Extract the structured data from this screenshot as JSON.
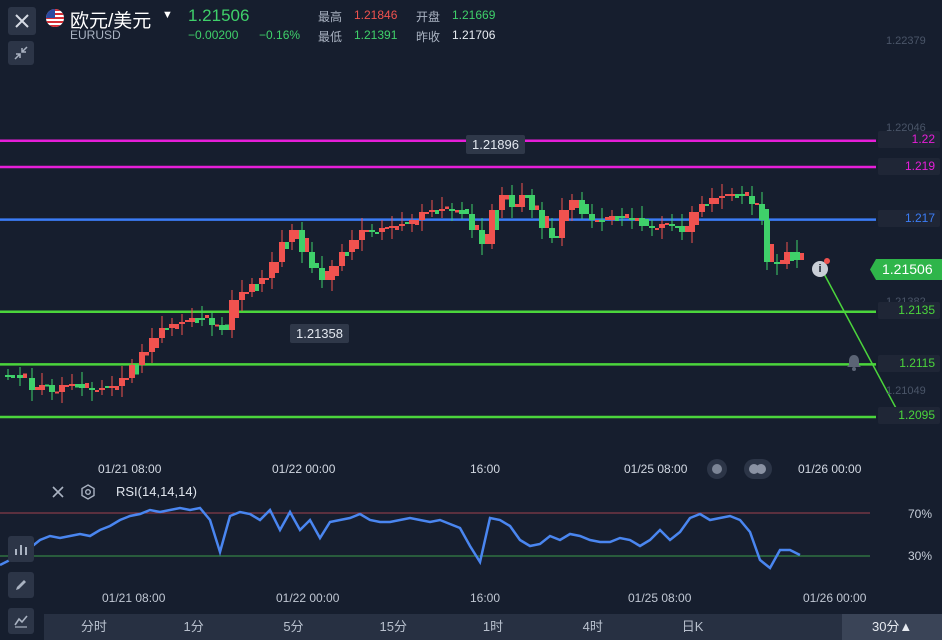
{
  "header": {
    "symbol_name": "欧元/美元",
    "symbol_code": "EURUSD",
    "price": "1.21506",
    "change": "−0.00200",
    "change_pct": "−0.16%",
    "high_label": "最高",
    "high_value": "1.21846",
    "open_label": "开盘",
    "open_value": "1.21669",
    "low_label": "最低",
    "low_value": "1.21391",
    "prev_close_label": "昨收",
    "prev_close_value": "1.21706"
  },
  "price_axis": {
    "top_tick": "1.22379",
    "mid_tick_1": "1.22046",
    "mid_tick_2": "1.21382",
    "mid_tick_3": "1.21049",
    "current_price_tag": "1.21506"
  },
  "horizontal_lines": [
    {
      "label": "1.22",
      "color": "#e61ed8"
    },
    {
      "label": "1.219",
      "color": "#e61ed8"
    },
    {
      "label": "1.217",
      "color": "#3b7cf5"
    },
    {
      "label": "1.2135",
      "color": "#4bd53c"
    },
    {
      "label": "1.2115",
      "color": "#4bd53c"
    },
    {
      "label": "1.2095",
      "color": "#4bd53c"
    }
  ],
  "tooltips": {
    "high_marker": "1.21896",
    "low_marker": "1.21358"
  },
  "x_axis": [
    "01/21 08:00",
    "01/22 00:00",
    "16:00",
    "01/25 08:00",
    "01/26 00:00"
  ],
  "rsi": {
    "label": "RSI(14,14,14)",
    "level_70": "70%",
    "level_30": "30%"
  },
  "timeframes": [
    "分时",
    "1分",
    "5分",
    "15分",
    "1时",
    "4时",
    "日K",
    "",
    "30分▲"
  ],
  "colors": {
    "up": "#f0524f",
    "down": "#3fd06a",
    "bg": "#161e2e",
    "rsi_line": "#4a86f0"
  },
  "chart_data": {
    "type": "candlestick",
    "horizontal_levels": [
      1.22,
      1.219,
      1.217,
      1.2135,
      1.2115,
      1.2095
    ],
    "x_ticks": [
      "01/21 08:00",
      "01/22 00:00",
      "16:00",
      "01/25 08:00",
      "01/26 00:00"
    ],
    "y_ticks": [
      1.22379,
      1.22046,
      1.21382,
      1.21049
    ],
    "last_price": 1.21506,
    "period_high": 1.21896,
    "period_low": 1.21358
  }
}
